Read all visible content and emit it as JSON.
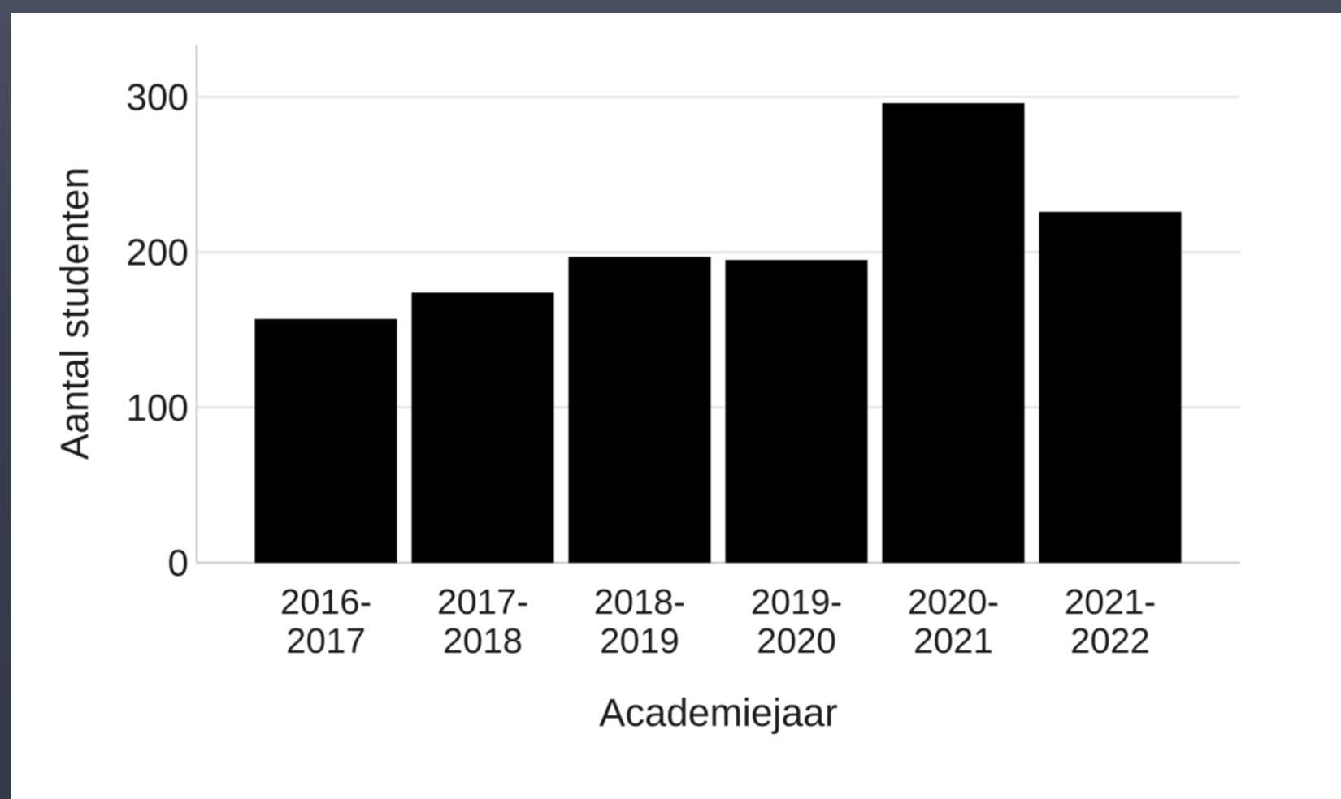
{
  "chart_data": {
    "type": "bar",
    "title": "",
    "xlabel": "Academiejaar",
    "ylabel": "Aantal studenten",
    "categories": [
      [
        "2016-",
        "2017"
      ],
      [
        "2017-",
        "2018"
      ],
      [
        "2018-",
        "2019"
      ],
      [
        "2019-",
        "2020"
      ],
      [
        "2020-",
        "2021"
      ],
      [
        "2021-",
        "2022"
      ]
    ],
    "values": [
      157,
      174,
      197,
      195,
      296,
      226
    ],
    "ylim": [
      0,
      330
    ],
    "yticks": [
      0,
      100,
      200,
      300
    ],
    "grid": true,
    "bar_color": "#000000",
    "grid_color": "#e4e4e4"
  }
}
